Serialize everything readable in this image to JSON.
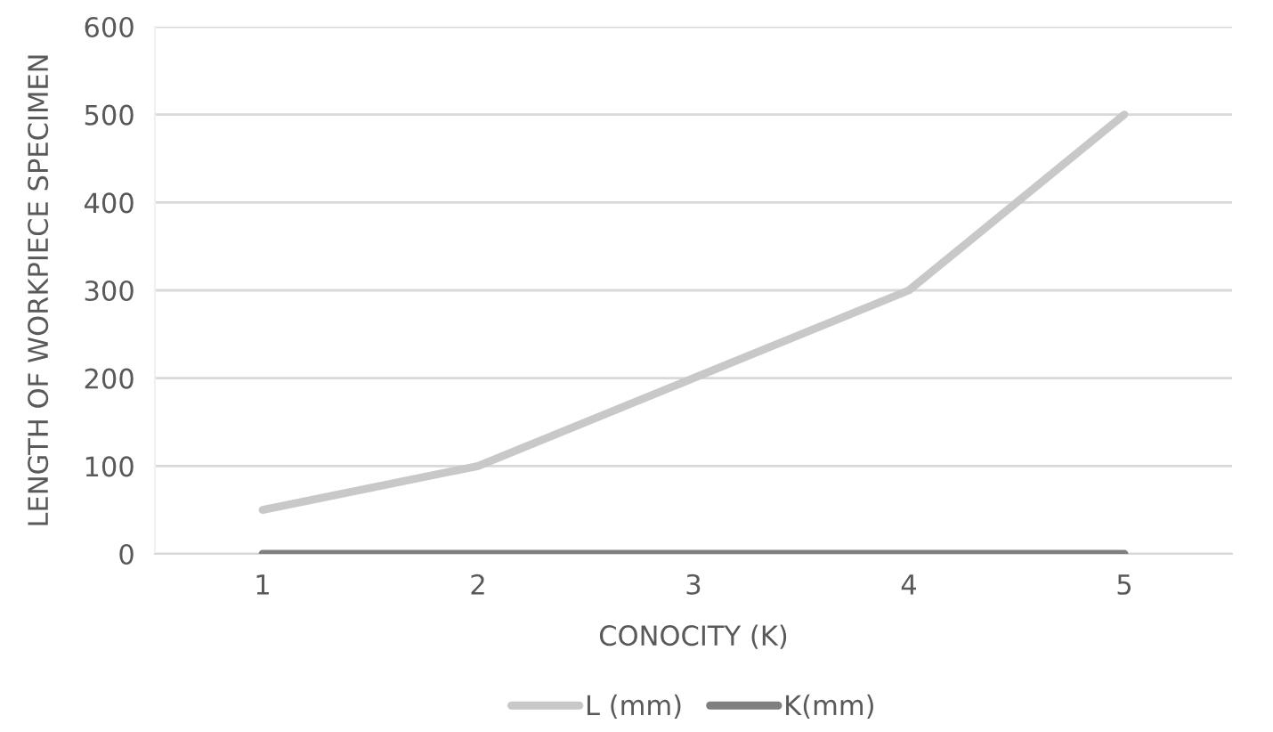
{
  "chart_data": {
    "type": "line",
    "xlabel": "CONOCITY (K)",
    "ylabel": "LENGTH OF WORKPIECE SPECIMEN",
    "categories": [
      "1",
      "2",
      "3",
      "4",
      "5"
    ],
    "series": [
      {
        "name": "L (mm)",
        "color": "#c8c8c8",
        "values": [
          50,
          100,
          200,
          300,
          500
        ]
      },
      {
        "name": "K(mm)",
        "color": "#7f7f7f",
        "values": [
          0,
          0,
          0,
          0,
          0
        ]
      }
    ],
    "ylim": [
      0,
      600
    ],
    "yticks": [
      0,
      100,
      200,
      300,
      400,
      500,
      600
    ],
    "grid": "y",
    "legend": "bottom",
    "marker": "none",
    "line_style": "solid"
  }
}
